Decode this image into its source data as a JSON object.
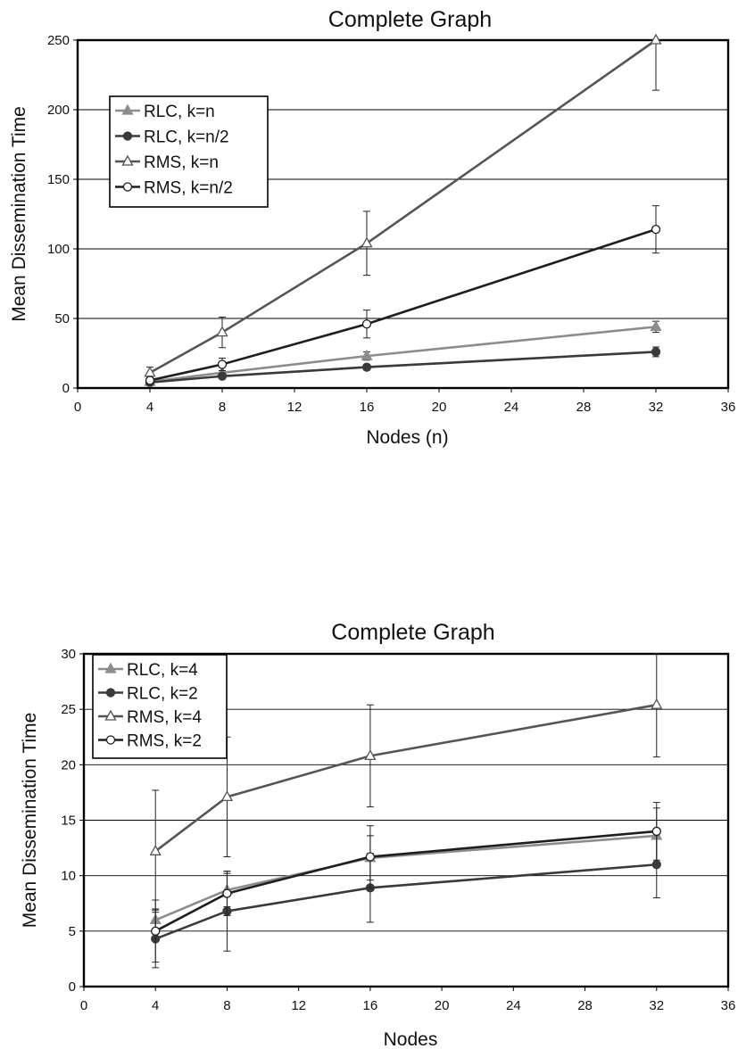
{
  "chart_data": [
    {
      "type": "line",
      "title": "Complete Graph",
      "xlabel": "Nodes (n)",
      "ylabel": "Mean Dissemination Time",
      "xlim": [
        0,
        36
      ],
      "ylim": [
        0,
        250
      ],
      "xticks": [
        0,
        4,
        8,
        12,
        16,
        20,
        24,
        28,
        32,
        36
      ],
      "yticks": [
        0,
        50,
        100,
        150,
        200,
        250
      ],
      "grid": "horizontal",
      "legend_position": "upper-left",
      "x": [
        4,
        8,
        16,
        32
      ],
      "series": [
        {
          "name": "RLC, k=n",
          "marker": "triangle-filled",
          "color": "#8c8c8c",
          "values": [
            4.5,
            11,
            23,
            44
          ],
          "error": [
            1,
            1.5,
            3,
            4
          ]
        },
        {
          "name": "RLC, k=n/2",
          "marker": "circle-filled",
          "color": "#3a3a3a",
          "values": [
            4,
            8.5,
            15,
            26
          ],
          "error": [
            1,
            1,
            2,
            3.5
          ]
        },
        {
          "name": "RMS, k=n",
          "marker": "triangle-open",
          "color": "#555555",
          "values": [
            11,
            40,
            104,
            250
          ],
          "error": [
            4,
            11,
            23,
            36
          ]
        },
        {
          "name": "RMS, k=n/2",
          "marker": "circle-open",
          "color": "#1e1e1e",
          "values": [
            5.5,
            17,
            46,
            114
          ],
          "error": [
            1.5,
            4.5,
            10,
            17
          ]
        }
      ]
    },
    {
      "type": "line",
      "title": "Complete Graph",
      "xlabel": "Nodes",
      "ylabel": "Mean Dissemination Time",
      "xlim": [
        0,
        36
      ],
      "ylim": [
        0,
        30
      ],
      "xticks": [
        0,
        4,
        8,
        12,
        16,
        20,
        24,
        28,
        32,
        36
      ],
      "yticks": [
        0,
        5,
        10,
        15,
        20,
        25,
        30
      ],
      "grid": "horizontal",
      "legend_position": "upper-left",
      "x": [
        4,
        8,
        16,
        32
      ],
      "series": [
        {
          "name": "RLC, k=4",
          "marker": "triangle-filled",
          "color": "#8c8c8c",
          "values": [
            6,
            8.7,
            11.6,
            13.6
          ],
          "error": [
            1,
            1.5,
            2,
            2.5
          ]
        },
        {
          "name": "RLC, k=2",
          "marker": "circle-filled",
          "color": "#3a3a3a",
          "values": [
            4.3,
            6.8,
            8.9,
            11
          ],
          "error": [
            2.6,
            3.6,
            3.1,
            3
          ]
        },
        {
          "name": "RMS, k=4",
          "marker": "triangle-open",
          "color": "#555555",
          "values": [
            12.2,
            17.1,
            20.8,
            25.4
          ],
          "error": [
            5.5,
            5.4,
            4.6,
            4.7
          ]
        },
        {
          "name": "RMS, k=2",
          "marker": "circle-open",
          "color": "#1e1e1e",
          "values": [
            5,
            8.4,
            11.7,
            14
          ],
          "error": [
            2.8,
            2,
            2.8,
            2.6
          ]
        }
      ]
    }
  ]
}
